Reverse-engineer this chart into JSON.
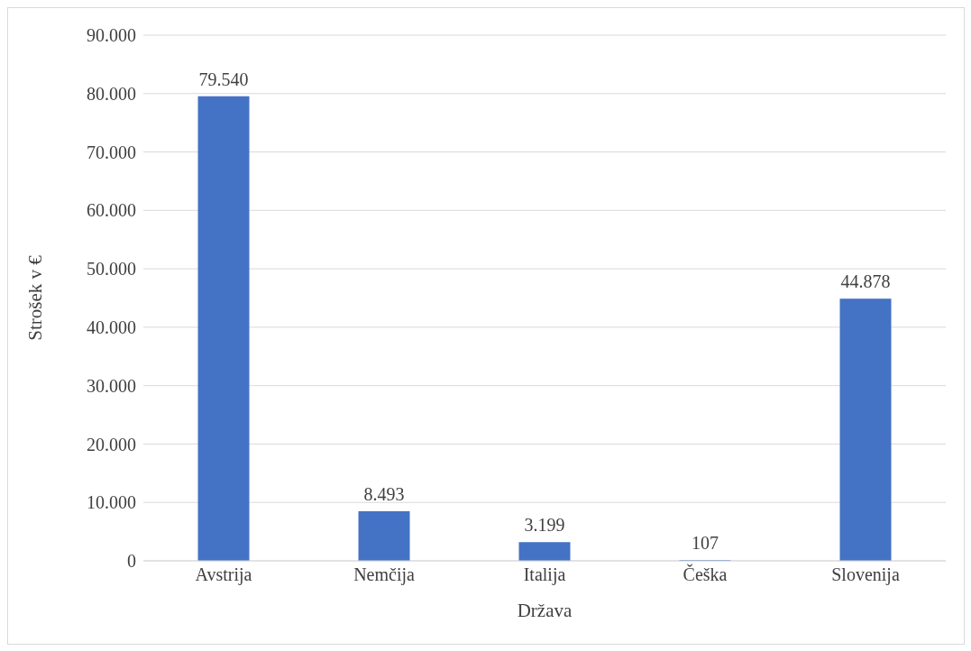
{
  "chart_data": {
    "type": "bar",
    "xlabel": "Država",
    "ylabel": "Strošek v €",
    "categories": [
      "Avstrija",
      "Nemčija",
      "Italija",
      "Češka",
      "Slovenija"
    ],
    "values": [
      79540,
      8493,
      3199,
      107,
      44878
    ],
    "value_labels": [
      "79.540",
      "8.493",
      "3.199",
      "107",
      "44.878"
    ],
    "color": "#4472c4",
    "ylim": [
      0,
      90000
    ],
    "yticks": [
      {
        "value": 0,
        "label": "0"
      },
      {
        "value": 10000,
        "label": "10.000"
      },
      {
        "value": 20000,
        "label": "20.000"
      },
      {
        "value": 30000,
        "label": "30.000"
      },
      {
        "value": 40000,
        "label": "40.000"
      },
      {
        "value": 50000,
        "label": "50.000"
      },
      {
        "value": 60000,
        "label": "60.000"
      },
      {
        "value": 70000,
        "label": "70.000"
      },
      {
        "value": 80000,
        "label": "80.000"
      },
      {
        "value": 90000,
        "label": "90.000"
      }
    ],
    "grid": "y",
    "legend": false
  }
}
